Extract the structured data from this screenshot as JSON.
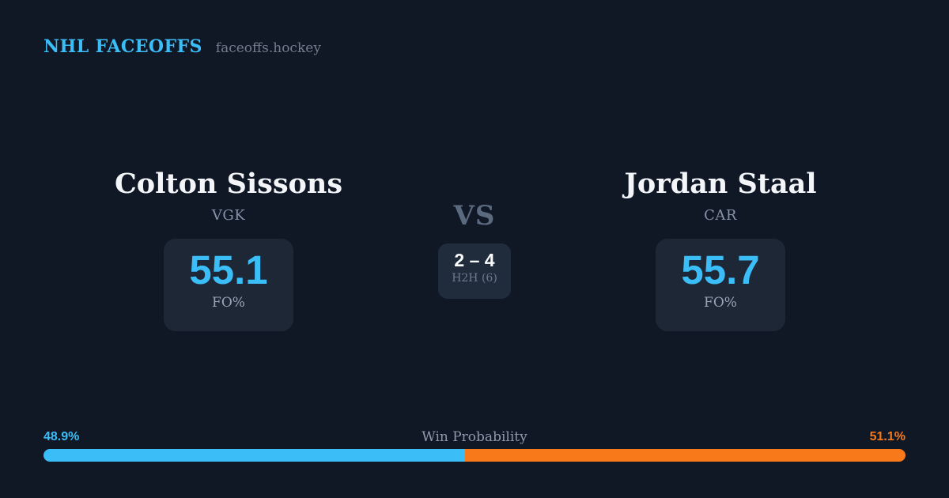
{
  "header": {
    "brand": "NHL FACEOFFS",
    "domain": "faceoffs.hockey"
  },
  "matchup": {
    "vs_label": "VS",
    "h2h": {
      "score": "2 – 4",
      "label": "H2H (6)"
    },
    "players": [
      {
        "name": "Colton Sissons",
        "team": "VGK",
        "stat_value": "55.1",
        "stat_label": "FO%"
      },
      {
        "name": "Jordan Staal",
        "team": "CAR",
        "stat_value": "55.7",
        "stat_label": "FO%"
      }
    ]
  },
  "win_probability": {
    "title": "Win Probability",
    "left_pct_label": "48.9%",
    "right_pct_label": "51.1%",
    "left_value": 48.9,
    "right_value": 51.1
  },
  "colors": {
    "accent_blue": "#3bbdf8",
    "accent_orange": "#f7791a",
    "background": "#101826",
    "card_background": "#1d2736"
  }
}
